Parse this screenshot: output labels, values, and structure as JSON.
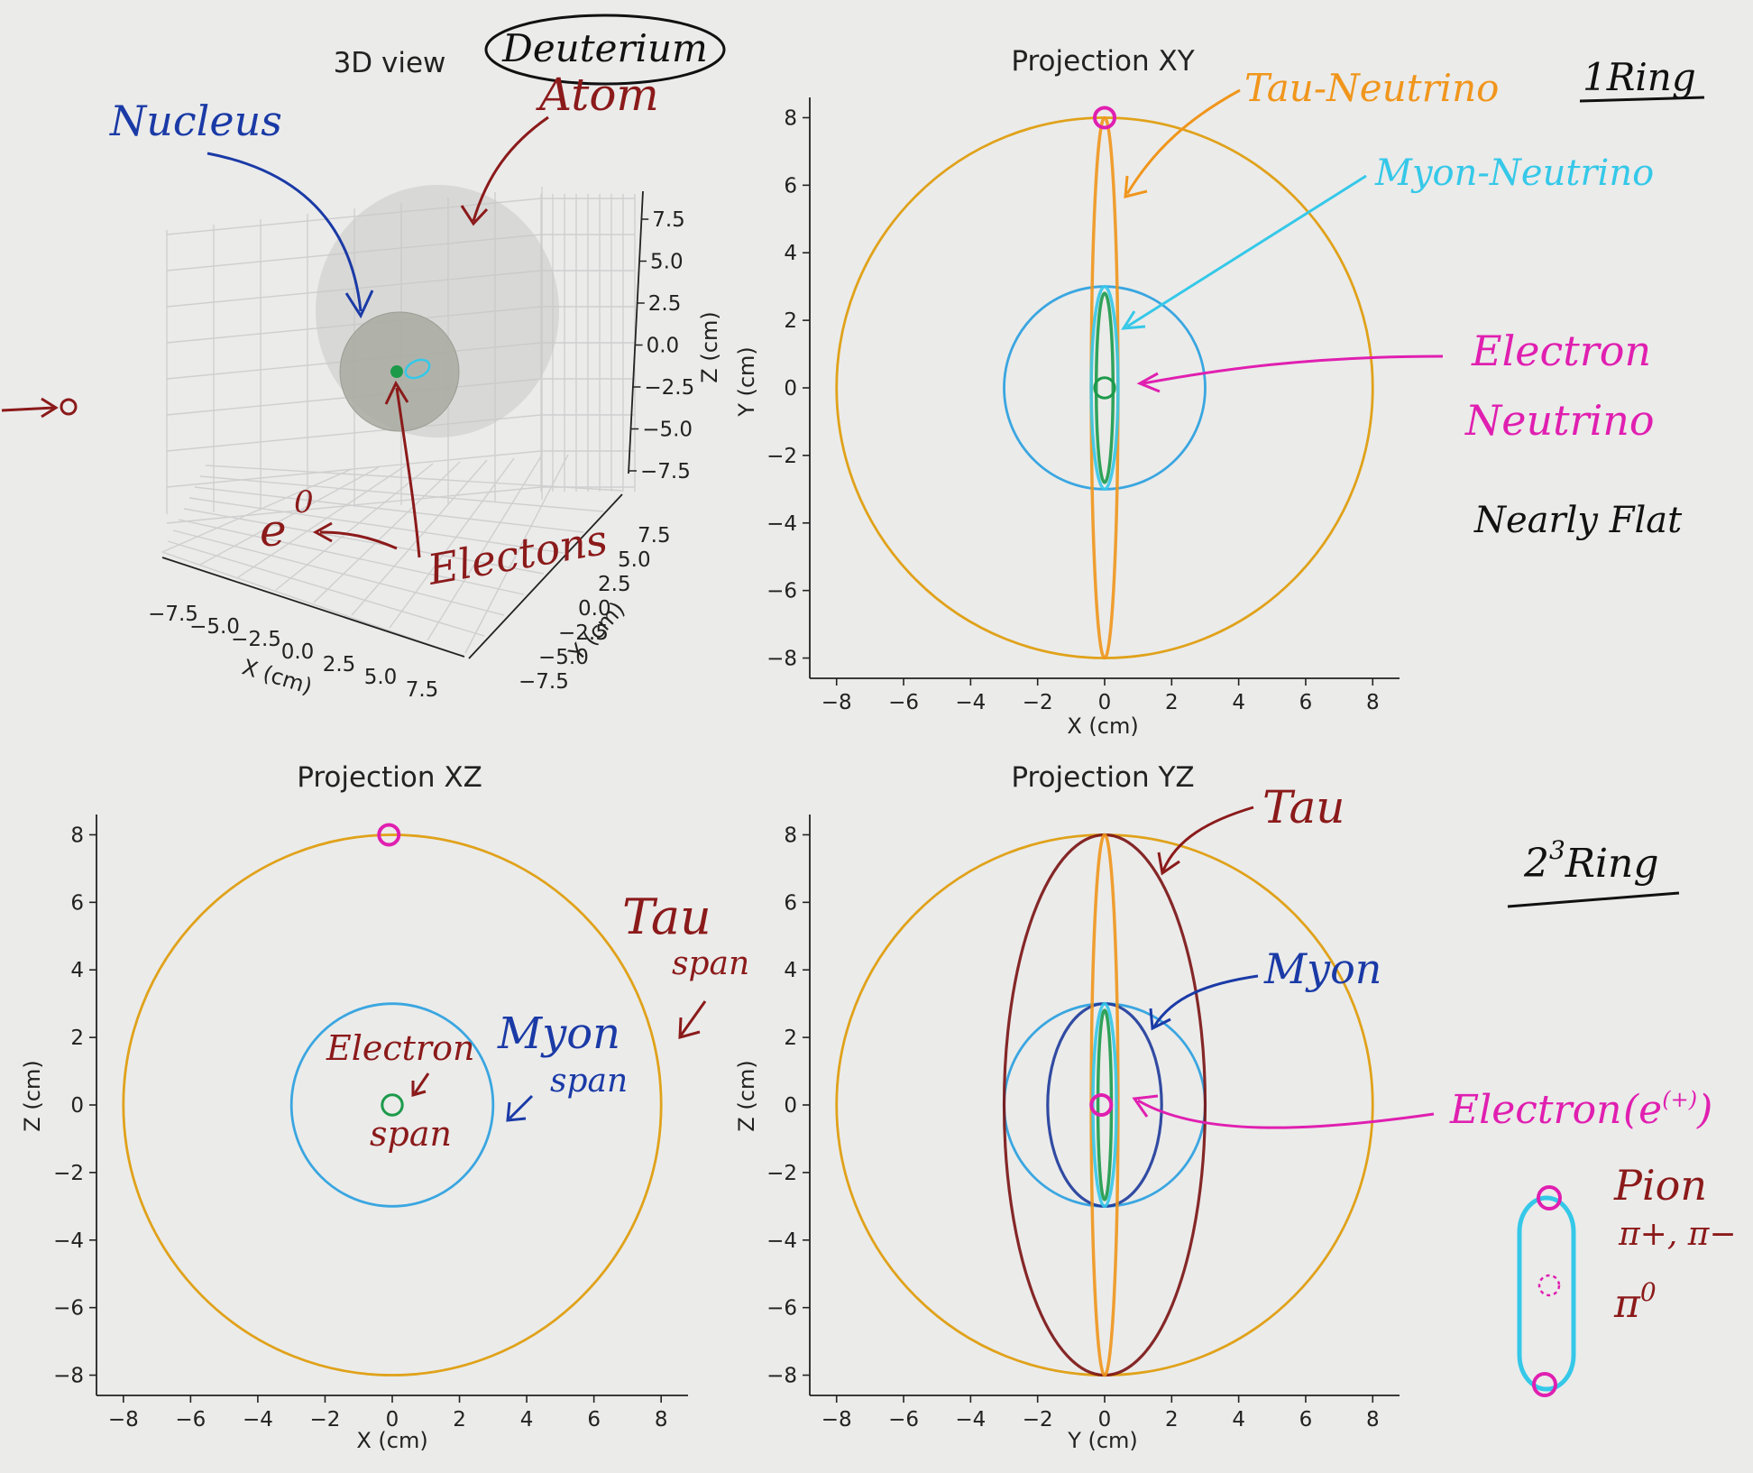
{
  "colors": {
    "background": "#ebebea",
    "axis": "#222222",
    "tau_span": "#e0a21a",
    "myon_span": "#3aa6e0",
    "electron_span": "#1c9a4a",
    "tau_orbit": "#7a1212",
    "myon_orbit": "#1d3a9a",
    "tau_neutrino": "#f0961c",
    "myon_neutrino": "#35c8e8",
    "electron_neutrino": "#e01fb0",
    "annot_dark_red": "#8b1a1a",
    "annot_blue": "#1a3aa6",
    "annot_black": "#111111"
  },
  "chart_data": [
    {
      "id": "3d",
      "type": "scatter",
      "title": "3D view",
      "xlabel": "X (cm)",
      "ylabel": "Y (cm)",
      "zlabel": "Z (cm)",
      "x_ticks": [
        "−7.5",
        "−5.0",
        "−2.5",
        "0.0",
        "2.5",
        "5.0",
        "7.5"
      ],
      "y_ticks": [
        "−7.5",
        "−5.0",
        "−2.5",
        "0.0",
        "2.5",
        "5.0",
        "7.5"
      ],
      "z_ticks": [
        "−7.5",
        "−5.0",
        "−2.5",
        "0.0",
        "2.5",
        "5.0",
        "7.5"
      ],
      "xlim": [
        -7.5,
        7.5
      ],
      "ylim": [
        -7.5,
        7.5
      ],
      "zlim": [
        -7.5,
        7.5
      ],
      "spheres": [
        {
          "label": "atom",
          "radius": 8
        },
        {
          "label": "nucleus",
          "radius": 3
        }
      ],
      "grid": true
    },
    {
      "id": "xy",
      "type": "line",
      "title": "Projection XY",
      "xlabel": "X (cm)",
      "ylabel": "Y (cm)",
      "xlim": [
        -8.8,
        8.8
      ],
      "ylim": [
        -8.6,
        8.6
      ],
      "x_ticks": [
        -8,
        -6,
        -4,
        -2,
        0,
        2,
        4,
        6,
        8
      ],
      "y_ticks": [
        -8,
        -6,
        -4,
        -2,
        0,
        2,
        4,
        6,
        8
      ],
      "circles": [
        {
          "series": "tau_span",
          "r": 8
        },
        {
          "series": "myon_span",
          "r": 3
        },
        {
          "series": "electron_span",
          "r": 0.3
        }
      ],
      "ellipses": [
        {
          "series": "tau_neutrino",
          "cx": 0,
          "cy": 0,
          "rx": 0.4,
          "ry": 8
        },
        {
          "series": "myon_neutrino",
          "cx": 0,
          "cy": 0,
          "rx": 0.4,
          "ry": 3
        },
        {
          "series": "electron_span",
          "cx": 0,
          "cy": 0,
          "rx": 0.25,
          "ry": 2.8
        }
      ],
      "markers": [
        {
          "series": "electron_neutrino",
          "x": 0,
          "y": 8
        }
      ]
    },
    {
      "id": "xz",
      "type": "line",
      "title": "Projection XZ",
      "xlabel": "X (cm)",
      "ylabel": "Z (cm)",
      "xlim": [
        -8.8,
        8.8
      ],
      "ylim": [
        -8.6,
        8.6
      ],
      "x_ticks": [
        -8,
        -6,
        -4,
        -2,
        0,
        2,
        4,
        6,
        8
      ],
      "y_ticks": [
        -8,
        -6,
        -4,
        -2,
        0,
        2,
        4,
        6,
        8
      ],
      "circles": [
        {
          "series": "tau_span",
          "r": 8
        },
        {
          "series": "myon_span",
          "r": 3
        },
        {
          "series": "electron_span",
          "r": 0.3
        }
      ],
      "ellipses": [],
      "markers": [
        {
          "series": "electron_neutrino",
          "x": -0.1,
          "y": 8
        }
      ]
    },
    {
      "id": "yz",
      "type": "line",
      "title": "Projection YZ",
      "xlabel": "Y (cm)",
      "ylabel": "Z (cm)",
      "xlim": [
        -8.8,
        8.8
      ],
      "ylim": [
        -8.6,
        8.6
      ],
      "x_ticks": [
        -8,
        -6,
        -4,
        -2,
        0,
        2,
        4,
        6,
        8
      ],
      "y_ticks": [
        -8,
        -6,
        -4,
        -2,
        0,
        2,
        4,
        6,
        8
      ],
      "circles": [
        {
          "series": "tau_span",
          "r": 8
        },
        {
          "series": "myon_span",
          "r": 3
        }
      ],
      "ellipses": [
        {
          "series": "tau_orbit",
          "cx": 0,
          "cy": 0,
          "rx": 3,
          "ry": 8
        },
        {
          "series": "myon_orbit",
          "cx": 0,
          "cy": 0,
          "rx": 1.7,
          "ry": 3
        },
        {
          "series": "tau_neutrino",
          "cx": 0,
          "cy": 0,
          "rx": 0.4,
          "ry": 8
        },
        {
          "series": "myon_neutrino",
          "cx": 0,
          "cy": 0,
          "rx": 0.35,
          "ry": 3
        },
        {
          "series": "electron_span",
          "cx": 0,
          "cy": 0,
          "rx": 0.2,
          "ry": 2.8
        }
      ],
      "markers": [
        {
          "series": "electron_neutrino",
          "x": -0.1,
          "y": 0
        }
      ]
    }
  ],
  "annotations": {
    "deuterium": "Deuterium",
    "atom": "Atom",
    "nucleus": "Nucleus",
    "e0": "e",
    "e0_sup": "0",
    "electrons": "Electons",
    "tau_neutrino": "Tau-Neutrino",
    "myon_neutrino": "Myon-Neutrino",
    "electron_neutrino_1": "Electron",
    "electron_neutrino_2": "Neutrino",
    "nearly_flat": "Nearly Flat",
    "ring1": "1Ring",
    "ring2": "2",
    "ring2_sup": "3",
    "ring2_rest": "Ring",
    "tau_span_1": "Tau",
    "tau_span_2": "span",
    "electron_span_1": "Electron",
    "electron_span_2": "span",
    "myon_span_1": "Myon",
    "myon_span_2": "span",
    "tau": "Tau",
    "myon": "Myon",
    "electron_e": "Electron",
    "electron_e_sym": "(e",
    "electron_e_sup": "(+)",
    "electron_e_close": ")",
    "pion": "Pion",
    "pion_charged": "π+, π−",
    "pion_neutral": "π",
    "pion_neutral_sup": "0"
  }
}
